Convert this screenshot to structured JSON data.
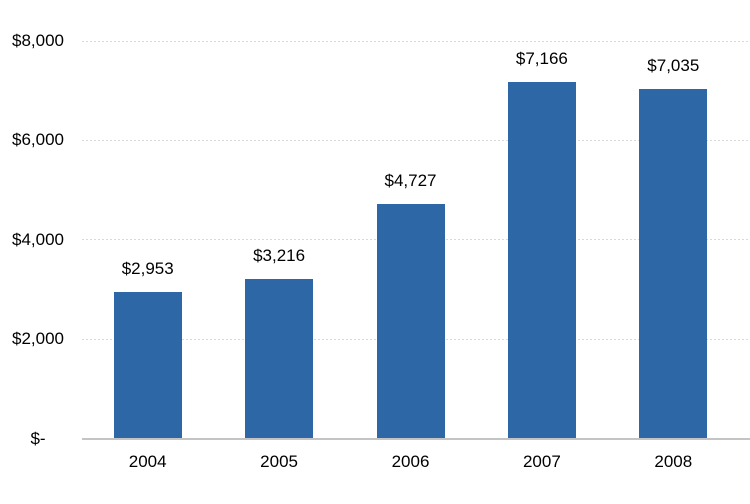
{
  "chart_data": {
    "type": "bar",
    "title": "",
    "xlabel": "",
    "ylabel": "",
    "categories": [
      "2004",
      "2005",
      "2006",
      "2007",
      "2008"
    ],
    "values": [
      2953,
      3216,
      4727,
      7166,
      7035
    ],
    "value_labels": [
      "$2,953",
      "$3,216",
      "$4,727",
      "$7,166",
      "$7,035"
    ],
    "y_ticks": [
      {
        "value": 0,
        "label": "$-"
      },
      {
        "value": 2000,
        "label": "$2,000"
      },
      {
        "value": 4000,
        "label": "$4,000"
      },
      {
        "value": 6000,
        "label": "$6,000"
      },
      {
        "value": 8000,
        "label": "$8,000"
      }
    ],
    "ylim": [
      0,
      8000
    ],
    "grid": "horizontal-dashed",
    "legend": "none",
    "colors": {
      "bar": "#2d67a6",
      "gridline": "#d9d9d9",
      "axis_line": "#c4c4c4",
      "text": "#000000",
      "background": "#ffffff"
    }
  }
}
